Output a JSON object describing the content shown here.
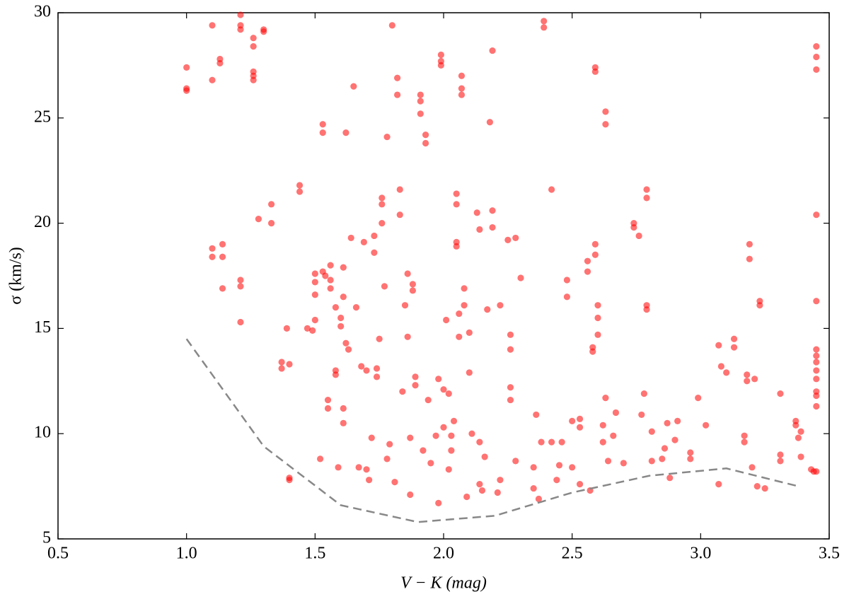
{
  "chart_data": {
    "type": "scatter",
    "xlabel": "V − K (mag)",
    "ylabel": "σ (km/s)",
    "xlim": [
      0.5,
      3.5
    ],
    "ylim": [
      5,
      30
    ],
    "xticks": [
      0.5,
      {
        "value": 1,
        "label": "1.0"
      },
      1.5,
      {
        "value": 2,
        "label": "2.0"
      },
      2.5,
      {
        "value": 3,
        "label": "3.0"
      },
      3.5
    ],
    "yticks": [
      5,
      10,
      15,
      20,
      25,
      30
    ],
    "series": [
      {
        "type": "scatter",
        "color": "#ff0000",
        "x": [
          1.0,
          1.0,
          1.0,
          1.1,
          1.1,
          1.1,
          1.1,
          1.13,
          1.13,
          1.14,
          1.14,
          1.14,
          1.21,
          1.21,
          1.21,
          1.21,
          1.21,
          1.21,
          1.26,
          1.26,
          1.26,
          1.26,
          1.26,
          1.28,
          1.3,
          1.3,
          1.33,
          1.33,
          1.37,
          1.37,
          1.39,
          1.4,
          1.4,
          1.4,
          1.44,
          1.44,
          1.47,
          1.49,
          1.5,
          1.5,
          1.5,
          1.5,
          1.52,
          1.53,
          1.53,
          1.53,
          1.54,
          1.55,
          1.55,
          1.56,
          1.56,
          1.56,
          1.58,
          1.58,
          1.58,
          1.59,
          1.6,
          1.6,
          1.61,
          1.61,
          1.61,
          1.61,
          1.62,
          1.62,
          1.63,
          1.64,
          1.65,
          1.66,
          1.67,
          1.68,
          1.69,
          1.7,
          1.7,
          1.71,
          1.72,
          1.73,
          1.73,
          1.74,
          1.74,
          1.75,
          1.76,
          1.76,
          1.76,
          1.77,
          1.78,
          1.78,
          1.79,
          1.8,
          1.81,
          1.82,
          1.82,
          1.83,
          1.83,
          1.84,
          1.85,
          1.86,
          1.86,
          1.87,
          1.87,
          1.88,
          1.88,
          1.89,
          1.89,
          1.91,
          1.91,
          1.91,
          1.92,
          1.93,
          1.93,
          1.94,
          1.95,
          1.97,
          1.98,
          1.98,
          1.99,
          1.99,
          1.99,
          2.0,
          2.0,
          2.01,
          2.02,
          2.02,
          2.03,
          2.03,
          2.04,
          2.05,
          2.05,
          2.05,
          2.05,
          2.06,
          2.06,
          2.07,
          2.07,
          2.07,
          2.08,
          2.08,
          2.09,
          2.1,
          2.1,
          2.11,
          2.13,
          2.14,
          2.14,
          2.14,
          2.15,
          2.16,
          2.17,
          2.18,
          2.19,
          2.19,
          2.19,
          2.21,
          2.22,
          2.22,
          2.25,
          2.26,
          2.26,
          2.26,
          2.26,
          2.28,
          2.28,
          2.3,
          2.35,
          2.35,
          2.36,
          2.37,
          2.38,
          2.39,
          2.39,
          2.42,
          2.42,
          2.44,
          2.45,
          2.46,
          2.48,
          2.48,
          2.5,
          2.5,
          2.53,
          2.53,
          2.53,
          2.56,
          2.56,
          2.57,
          2.58,
          2.58,
          2.59,
          2.59,
          2.59,
          2.59,
          2.6,
          2.6,
          2.6,
          2.62,
          2.62,
          2.63,
          2.63,
          2.63,
          2.64,
          2.66,
          2.67,
          2.7,
          2.74,
          2.74,
          2.76,
          2.77,
          2.78,
          2.79,
          2.79,
          2.79,
          2.79,
          2.81,
          2.81,
          2.85,
          2.86,
          2.87,
          2.88,
          2.9,
          2.91,
          2.96,
          2.96,
          2.99,
          3.02,
          3.07,
          3.07,
          3.08,
          3.1,
          3.13,
          3.13,
          3.17,
          3.17,
          3.18,
          3.18,
          3.19,
          3.19,
          3.2,
          3.21,
          3.22,
          3.23,
          3.23,
          3.25,
          3.31,
          3.31,
          3.31,
          3.37,
          3.37,
          3.38,
          3.39,
          3.39,
          3.43,
          3.44,
          3.45,
          3.45,
          3.45,
          3.45,
          3.45,
          3.45,
          3.45,
          3.45,
          3.45,
          3.45,
          3.45,
          3.45,
          3.45,
          3.45
        ],
        "values": [
          27.4,
          26.4,
          26.3,
          29.4,
          26.8,
          18.8,
          18.4,
          27.8,
          27.6,
          19.0,
          18.4,
          16.9,
          29.9,
          29.4,
          29.2,
          17.3,
          17.0,
          15.3,
          28.8,
          28.4,
          27.2,
          27.0,
          26.8,
          20.2,
          29.2,
          29.1,
          20.9,
          20.0,
          13.4,
          13.1,
          15.0,
          13.3,
          7.9,
          7.8,
          21.8,
          21.5,
          15.0,
          14.9,
          17.6,
          17.2,
          16.6,
          15.4,
          8.8,
          24.7,
          24.3,
          17.7,
          17.5,
          11.6,
          11.2,
          18.0,
          17.3,
          16.9,
          13.0,
          12.8,
          16.0,
          8.4,
          15.5,
          15.1,
          17.9,
          16.5,
          11.2,
          10.5,
          24.3,
          14.3,
          14.0,
          19.3,
          26.5,
          16.0,
          8.4,
          13.2,
          19.1,
          13.0,
          8.3,
          7.8,
          9.8,
          18.6,
          19.4,
          13.1,
          12.7,
          14.5,
          21.2,
          20.9,
          20.0,
          17.0,
          24.1,
          8.8,
          9.5,
          29.4,
          7.7,
          26.9,
          26.1,
          21.6,
          20.4,
          12.0,
          16.1,
          17.6,
          14.6,
          9.8,
          7.1,
          17.1,
          16.8,
          12.7,
          12.3,
          26.1,
          25.8,
          25.2,
          9.2,
          24.2,
          23.8,
          11.6,
          8.6,
          9.9,
          12.6,
          6.7,
          28.0,
          27.7,
          27.5,
          12.1,
          10.3,
          15.4,
          11.9,
          8.3,
          9.9,
          9.2,
          10.6,
          21.4,
          20.9,
          19.1,
          18.9,
          15.7,
          14.6,
          27.0,
          26.4,
          26.1,
          16.9,
          16.1,
          7.0,
          12.9,
          14.8,
          10.0,
          20.5,
          19.7,
          9.6,
          7.6,
          7.3,
          8.9,
          15.9,
          24.8,
          28.2,
          19.8,
          20.6,
          7.2,
          16.1,
          7.8,
          19.2,
          14.7,
          14.0,
          12.2,
          11.6,
          19.3,
          8.7,
          17.4,
          8.4,
          7.4,
          10.9,
          6.9,
          9.6,
          29.6,
          29.3,
          21.6,
          9.6,
          7.8,
          8.5,
          9.6,
          17.3,
          16.5,
          10.6,
          8.4,
          10.7,
          10.3,
          7.6,
          18.2,
          17.7,
          7.3,
          14.1,
          13.9,
          27.4,
          27.2,
          19.0,
          18.5,
          16.1,
          15.5,
          14.7,
          10.4,
          9.6,
          25.3,
          24.7,
          11.7,
          8.7,
          9.9,
          11.0,
          8.6,
          20.0,
          19.8,
          19.4,
          10.9,
          11.9,
          21.6,
          21.2,
          16.1,
          15.9,
          8.7,
          10.1,
          8.8,
          9.3,
          10.5,
          7.9,
          9.7,
          10.6,
          9.1,
          8.8,
          11.7,
          10.4,
          7.6,
          14.2,
          13.2,
          12.9,
          14.5,
          14.1,
          9.9,
          9.6,
          12.8,
          12.5,
          19.0,
          18.3,
          8.4,
          12.6,
          7.5,
          16.3,
          16.1,
          7.4,
          11.9,
          9.0,
          8.7,
          10.6,
          10.4,
          9.8,
          10.1,
          8.9,
          8.3,
          8.2,
          28.4,
          27.9,
          27.3,
          20.4,
          16.3,
          14.0,
          13.7,
          13.4,
          13.0,
          12.6,
          12.0,
          11.8,
          11.3,
          8.2
        ]
      },
      {
        "type": "line",
        "color": "#888888",
        "dashed": true,
        "x": [
          1.0,
          1.3,
          1.6,
          1.9,
          2.2,
          2.5,
          2.8,
          3.1,
          3.38
        ],
        "values": [
          14.5,
          9.4,
          6.6,
          5.8,
          6.1,
          7.2,
          8.0,
          8.35,
          7.5
        ]
      }
    ]
  }
}
